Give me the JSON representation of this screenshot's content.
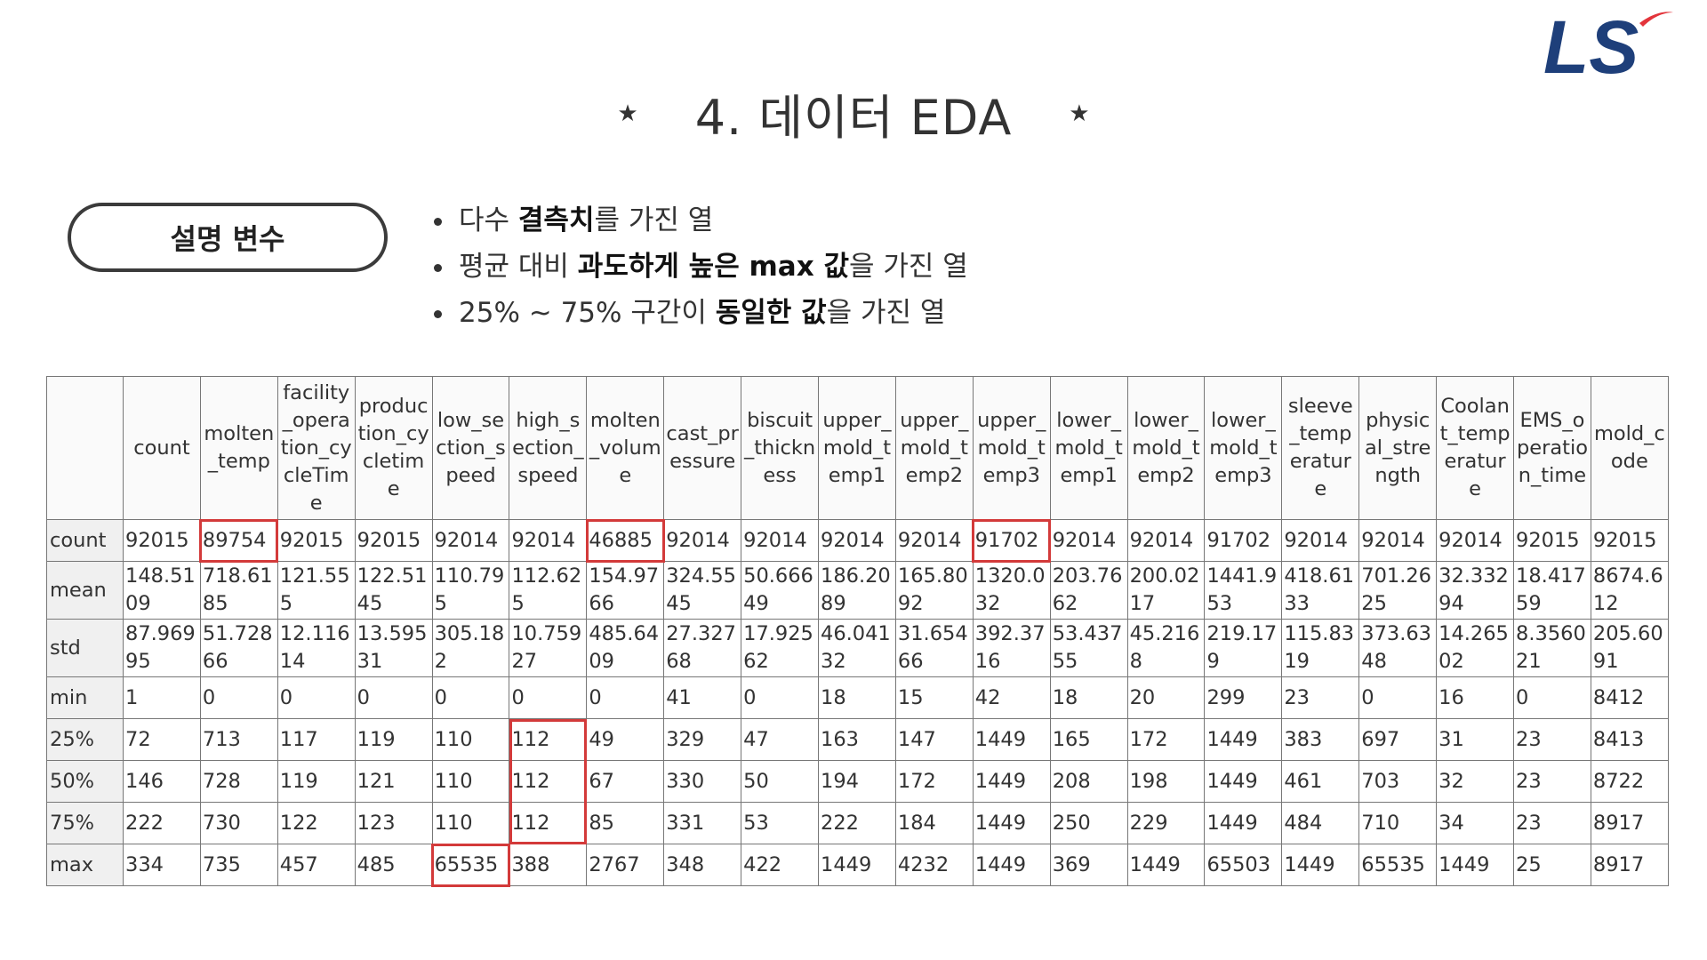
{
  "header": {
    "star_left": "★",
    "title": "4. 데이터 EDA",
    "star_right": "★"
  },
  "logo": {
    "text": "LS",
    "colors": {
      "text": "#1e3f7a",
      "swoosh": "#e3343b"
    }
  },
  "section_label": "설명 변수",
  "bullets": [
    {
      "pre": "다수 ",
      "bold": "결측치",
      "post": "를 가진 열"
    },
    {
      "pre": "평균 대비 ",
      "bold": "과도하게 높은 max 값",
      "post": "을 가진 열"
    },
    {
      "pre": "25% ~ 75% 구간이 ",
      "bold": "동일한 값",
      "post": "을 가진 열"
    }
  ],
  "table": {
    "columns": [
      "count",
      "molten_temp",
      "facility_operation_cycleTime",
      "production_cycletime",
      "low_section_speed",
      "high_section_speed",
      "molten_volume",
      "cast_pressure",
      "biscuit_thickness",
      "upper_mold_temp1",
      "upper_mold_temp2",
      "upper_mold_temp3",
      "lower_mold_temp1",
      "lower_mold_temp2",
      "lower_mold_temp3",
      "sleeve_temperature",
      "physical_strength",
      "Coolant_temperature",
      "EMS_operation_time",
      "mold_code"
    ],
    "rows": [
      {
        "label": "count",
        "cells": [
          "92015",
          "89754",
          "92015",
          "92015",
          "92014",
          "92014",
          "46885",
          "92014",
          "92014",
          "92014",
          "92014",
          "91702",
          "92014",
          "92014",
          "91702",
          "92014",
          "92014",
          "92014",
          "92015",
          "92015"
        ]
      },
      {
        "label": "mean",
        "cells": [
          "148.5109",
          "718.6185",
          "121.555",
          "122.5145",
          "110.795",
          "112.625",
          "154.9766",
          "324.5545",
          "50.66649",
          "186.2089",
          "165.8092",
          "1320.032",
          "203.7662",
          "200.0217",
          "1441.953",
          "418.6133",
          "701.2625",
          "32.33294",
          "18.41759",
          "8674.612"
        ]
      },
      {
        "label": "std",
        "cells": [
          "87.96995",
          "51.72866",
          "12.11614",
          "13.59531",
          "305.182",
          "10.75927",
          "485.6409",
          "27.32768",
          "17.92562",
          "46.04132",
          "31.65466",
          "392.3716",
          "53.43755",
          "45.2168",
          "219.179",
          "115.8319",
          "373.6348",
          "14.26502",
          "8.356021",
          "205.6091"
        ]
      },
      {
        "label": "min",
        "cells": [
          "1",
          "0",
          "0",
          "0",
          "0",
          "0",
          "0",
          "41",
          "0",
          "18",
          "15",
          "42",
          "18",
          "20",
          "299",
          "23",
          "0",
          "16",
          "0",
          "8412"
        ]
      },
      {
        "label": "25%",
        "cells": [
          "72",
          "713",
          "117",
          "119",
          "110",
          "112",
          "49",
          "329",
          "47",
          "163",
          "147",
          "1449",
          "165",
          "172",
          "1449",
          "383",
          "697",
          "31",
          "23",
          "8413"
        ]
      },
      {
        "label": "50%",
        "cells": [
          "146",
          "728",
          "119",
          "121",
          "110",
          "112",
          "67",
          "330",
          "50",
          "194",
          "172",
          "1449",
          "208",
          "198",
          "1449",
          "461",
          "703",
          "32",
          "23",
          "8722"
        ]
      },
      {
        "label": "75%",
        "cells": [
          "222",
          "730",
          "122",
          "123",
          "110",
          "112",
          "85",
          "331",
          "53",
          "222",
          "184",
          "1449",
          "250",
          "229",
          "1449",
          "484",
          "710",
          "34",
          "23",
          "8917"
        ]
      },
      {
        "label": "max",
        "cells": [
          "334",
          "735",
          "457",
          "485",
          "65535",
          "388",
          "2767",
          "348",
          "422",
          "1449",
          "4232",
          "1449",
          "369",
          "1449",
          "65503",
          "1449",
          "65535",
          "1449",
          "25",
          "8917"
        ]
      }
    ],
    "highlights": [
      {
        "row": 0,
        "col": 1
      },
      {
        "row": 0,
        "col": 6
      },
      {
        "row": 0,
        "col": 11
      },
      {
        "row": 7,
        "col": 4
      }
    ],
    "highlight_range": {
      "col": 5,
      "row_from": 4,
      "row_to": 6
    },
    "highlight_color": "#d33a3a"
  }
}
